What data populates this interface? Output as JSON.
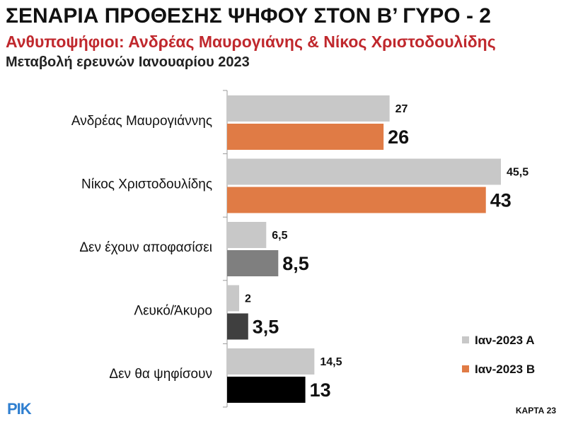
{
  "header": {
    "title": "ΣΕΝΑΡΙΑ ΠΡΟΘΕΣΗΣ ΨΗΦΟΥ ΣΤΟΝ Β’ ΓΥΡΟ - 2",
    "subtitle": "Ανθυποψήφιοι: Ανδρέας Μαυρογιάνης & Νίκος Χριστοδουλίδης",
    "subtitle2": "Μεταβολή ερευνών Ιανουαρίου 2023"
  },
  "footer": {
    "logo": "ΡΙΚ",
    "map_id": "ΚΑΡΤΑ 23"
  },
  "colors": {
    "series_a": "#c8c8c8",
    "series_b": "#e07b45",
    "undecided_b": "#7f7f7f",
    "blank_b": "#3f3f3f",
    "abstain_b": "#000000",
    "title": "#111111",
    "subtitle": "#c0282d"
  },
  "chart_data": {
    "type": "bar",
    "orientation": "horizontal",
    "categories": [
      "Ανδρέας Μαυρογιάννης",
      "Νίκος Χριστοδουλίδης",
      "Δεν έχουν αποφασίσει",
      "Λευκό/Άκυρο",
      "Δεν θα ψηφίσουν"
    ],
    "series": [
      {
        "name": "Ιαν-2023 Α",
        "values": [
          27,
          45.5,
          6.5,
          2,
          14.5
        ],
        "labels": [
          "27",
          "45,5",
          "6,5",
          "2",
          "14,5"
        ]
      },
      {
        "name": "Ιαν-2023 Β",
        "values": [
          26,
          43,
          8.5,
          3.5,
          13
        ],
        "labels": [
          "26",
          "43",
          "8,5",
          "3,5",
          "13"
        ]
      }
    ],
    "series_b_bar_colors": [
      "#e07b45",
      "#e07b45",
      "#7f7f7f",
      "#3f3f3f",
      "#000000"
    ],
    "xlim": [
      0,
      50
    ],
    "grid": false,
    "legend": "bottom-right"
  }
}
